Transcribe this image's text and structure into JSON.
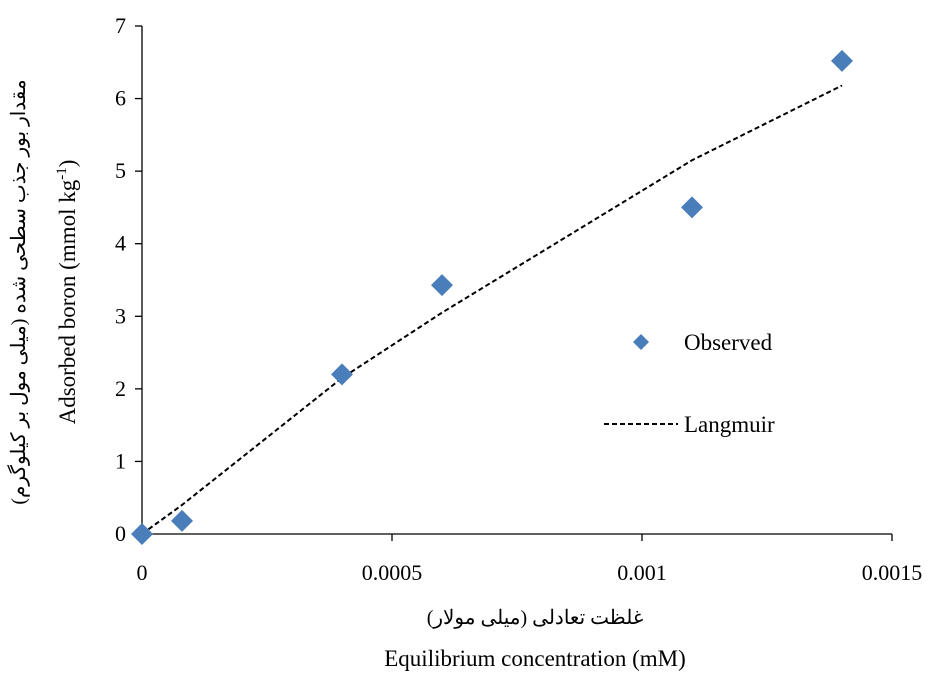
{
  "chart_data": {
    "type": "scatter",
    "xlabel": "Equilibrium concentration (mM)",
    "xlabel_fa": "غلظت تعادلی (میلی مولار)",
    "ylabel": "Adsorbed boron (mmol kg",
    "ylabel_sup": "-1",
    "ylabel_end": ")",
    "ylabel_fa": "مقدار بور جذب سطحی شده (میلی مول بر کیلوگرم)",
    "xlim": [
      0,
      0.0015
    ],
    "ylim": [
      0,
      7
    ],
    "xticks": [
      0,
      0.0005,
      0.001,
      0.0015
    ],
    "xtick_labels": [
      "0",
      "0.0005",
      "0.001",
      "0.0015"
    ],
    "yticks": [
      0,
      1,
      2,
      3,
      4,
      5,
      6,
      7
    ],
    "ytick_labels": [
      "0",
      "1",
      "2",
      "3",
      "4",
      "5",
      "6",
      "7"
    ],
    "grid": false,
    "legend_position": "right",
    "series": [
      {
        "name": "Observed",
        "style": "markers",
        "marker": "diamond",
        "color": "#4a7ebb",
        "x": [
          0,
          8e-05,
          0.0004,
          0.0006,
          0.0011,
          0.0014
        ],
        "y": [
          0,
          0.18,
          2.2,
          3.43,
          4.5,
          6.52
        ]
      },
      {
        "name": "Langmuir",
        "style": "dashed-line",
        "color": "#000000",
        "x": [
          0,
          8e-05,
          0.0004,
          0.0006,
          0.0011,
          0.0014
        ],
        "y": [
          0,
          0.4,
          2.15,
          3.05,
          5.15,
          6.18
        ]
      }
    ]
  }
}
